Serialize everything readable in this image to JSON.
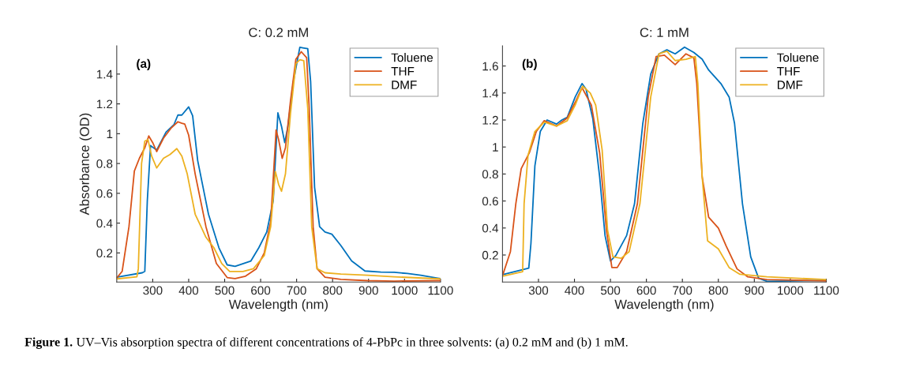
{
  "chart_data": [
    {
      "type": "line",
      "title": "C: 0.2 mM",
      "xlabel": "Wavelength (nm)",
      "ylabel": "Absorbance (OD)",
      "annotations": [
        "(a)"
      ],
      "xlim": [
        200,
        1100
      ],
      "ylim": [
        0.005,
        1.59
      ],
      "xticks": [
        300,
        400,
        500,
        600,
        700,
        800,
        900,
        1000,
        1100
      ],
      "yticks": [
        0.2,
        0.4,
        0.6,
        0.8,
        1,
        1.2,
        1.4
      ],
      "grid": false,
      "legend": "top right",
      "series": [
        {
          "name": "Toluene",
          "color": "#0072bd",
          "x": [
            200,
            271,
            278,
            285,
            294,
            311,
            337,
            359,
            370,
            381,
            400,
            411,
            425,
            455,
            484,
            507,
            529,
            573,
            595,
            617,
            635,
            648,
            658,
            667,
            676,
            691,
            709,
            720,
            731,
            739,
            750,
            764,
            779,
            798,
            823,
            853,
            890,
            934,
            971,
            1008,
            1045,
            1089,
            1100
          ],
          "values": [
            0.037,
            0.067,
            0.076,
            0.55,
            0.92,
            0.89,
            1.01,
            1.06,
            1.125,
            1.125,
            1.18,
            1.12,
            0.82,
            0.46,
            0.235,
            0.12,
            0.11,
            0.146,
            0.235,
            0.34,
            0.55,
            1.14,
            1.05,
            0.94,
            1.05,
            1.35,
            1.58,
            1.575,
            1.57,
            1.35,
            0.64,
            0.376,
            0.34,
            0.326,
            0.25,
            0.146,
            0.079,
            0.072,
            0.07,
            0.062,
            0.05,
            0.032,
            0.028
          ]
        },
        {
          "name": "THF",
          "color": "#d95319",
          "x": [
            200,
            215,
            234,
            249,
            263,
            278,
            289,
            300,
            311,
            330,
            352,
            370,
            381,
            389,
            400,
            418,
            448,
            477,
            507,
            529,
            558,
            588,
            610,
            628,
            643,
            650,
            660,
            669,
            683,
            698,
            713,
            728,
            735,
            746,
            757,
            779,
            823,
            897,
            971,
            1100
          ],
          "values": [
            0.032,
            0.076,
            0.376,
            0.75,
            0.835,
            0.905,
            0.985,
            0.94,
            0.88,
            0.97,
            1.04,
            1.08,
            1.07,
            1.065,
            0.99,
            0.73,
            0.376,
            0.129,
            0.035,
            0.028,
            0.044,
            0.094,
            0.2,
            0.41,
            1.025,
            0.96,
            0.835,
            0.905,
            1.22,
            1.5,
            1.55,
            1.51,
            1.17,
            0.376,
            0.094,
            0.037,
            0.023,
            0.014,
            0.011,
            0.014
          ]
        },
        {
          "name": "DMF",
          "color": "#edb120",
          "x": [
            200,
            256,
            260,
            269,
            278,
            287,
            297,
            311,
            330,
            348,
            367,
            381,
            396,
            418,
            448,
            470,
            492,
            514,
            551,
            580,
            610,
            628,
            641,
            650,
            658,
            669,
            683,
            698,
            709,
            720,
            731,
            742,
            757,
            779,
            823,
            897,
            971,
            1100
          ],
          "values": [
            0.026,
            0.04,
            0.094,
            0.8,
            0.95,
            0.96,
            0.85,
            0.77,
            0.835,
            0.86,
            0.9,
            0.85,
            0.73,
            0.46,
            0.305,
            0.235,
            0.129,
            0.076,
            0.076,
            0.094,
            0.182,
            0.376,
            0.746,
            0.66,
            0.614,
            0.73,
            1.135,
            1.47,
            1.496,
            1.49,
            1.17,
            0.376,
            0.094,
            0.067,
            0.058,
            0.05,
            0.04,
            0.026
          ]
        }
      ]
    },
    {
      "type": "line",
      "title": "C: 1 mM",
      "xlabel": "Wavelength (nm)",
      "annotations": [
        "(b)",
        "Figure 1.",
        "UV–Vis absorption spectra of different concentrations of 4-PbPc in three solvents: (a) 0.2 mM and (b) 1 mM."
      ],
      "xlim": [
        200,
        1100
      ],
      "ylim": [
        0.0,
        1.75
      ],
      "xticks": [
        300,
        400,
        500,
        600,
        700,
        800,
        900,
        1000,
        1100
      ],
      "yticks": [
        0.2,
        0.4,
        0.6,
        0.8,
        1,
        1.2,
        1.4,
        1.6
      ],
      "grid": false,
      "legend": "top right",
      "series": [
        {
          "name": "Toluene",
          "color": "#0072bd",
          "x": [
            200,
            273,
            279,
            290,
            305,
            324,
            350,
            365,
            380,
            402,
            421,
            432,
            451,
            470,
            485,
            500,
            515,
            545,
            567,
            590,
            612,
            635,
            657,
            680,
            706,
            732,
            755,
            773,
            807,
            830,
            845,
            867,
            890,
            912,
            935,
            1010,
            1100
          ],
          "values": [
            0.055,
            0.103,
            0.285,
            0.86,
            1.115,
            1.2,
            1.17,
            1.2,
            1.22,
            1.37,
            1.47,
            1.43,
            1.21,
            0.78,
            0.344,
            0.156,
            0.196,
            0.344,
            0.58,
            1.175,
            1.54,
            1.69,
            1.72,
            1.69,
            1.74,
            1.7,
            1.65,
            1.57,
            1.47,
            1.37,
            1.175,
            0.58,
            0.186,
            0.028,
            0.005,
            0.008,
            0.012
          ]
        },
        {
          "name": "THF",
          "color": "#d95319",
          "x": [
            200,
            222,
            237,
            252,
            275,
            294,
            316,
            350,
            380,
            402,
            421,
            447,
            470,
            489,
            504,
            519,
            545,
            575,
            605,
            627,
            650,
            680,
            710,
            732,
            740,
            755,
            773,
            800,
            822,
            852,
            882,
            935,
            1100
          ],
          "values": [
            0.047,
            0.225,
            0.58,
            0.84,
            0.96,
            1.115,
            1.195,
            1.155,
            1.215,
            1.33,
            1.44,
            1.31,
            0.957,
            0.384,
            0.107,
            0.107,
            0.225,
            0.58,
            1.37,
            1.67,
            1.68,
            1.61,
            1.69,
            1.66,
            1.47,
            0.78,
            0.48,
            0.4,
            0.265,
            0.097,
            0.038,
            0.018,
            0.008
          ]
        },
        {
          "name": "DMF",
          "color": "#edb120",
          "x": [
            200,
            256,
            260,
            271,
            290,
            316,
            350,
            380,
            402,
            423,
            444,
            459,
            477,
            492,
            507,
            530,
            552,
            582,
            612,
            635,
            657,
            680,
            710,
            736,
            743,
            755,
            770,
            800,
            830,
            860,
            935,
            1100
          ],
          "values": [
            0.043,
            0.077,
            0.58,
            0.94,
            1.115,
            1.185,
            1.155,
            1.195,
            1.31,
            1.45,
            1.4,
            1.31,
            0.977,
            0.384,
            0.186,
            0.176,
            0.225,
            0.58,
            1.37,
            1.69,
            1.71,
            1.64,
            1.65,
            1.67,
            1.47,
            0.78,
            0.305,
            0.245,
            0.107,
            0.057,
            0.038,
            0.018
          ]
        }
      ]
    }
  ]
}
